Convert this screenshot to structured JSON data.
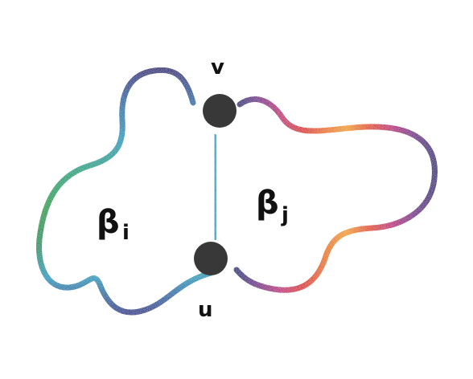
{
  "diagram": {
    "vertices": [
      {
        "id": "v",
        "label": "v"
      },
      {
        "id": "u",
        "label": "u"
      }
    ],
    "regions": [
      {
        "id": "beta-i",
        "symbol": "β",
        "subscript": "i"
      },
      {
        "id": "beta-j",
        "symbol": "β",
        "subscript": "j"
      }
    ],
    "colors": {
      "vertex": "#383838",
      "edge": "#3a9fba",
      "left_loop": [
        "#2f2a7a",
        "#1f6fa8",
        "#1a9bbd",
        "#12a37a",
        "#1d9d4b",
        "#1a8f5a",
        "#1a9bbd",
        "#2a3a8a"
      ],
      "right_loop": [
        "#2a2a7a",
        "#7a2a8a",
        "#c02c7a",
        "#d93030",
        "#e8741f",
        "#f0a020",
        "#e0502a",
        "#c0207a",
        "#7a2a8a",
        "#3a2a7a"
      ]
    }
  }
}
